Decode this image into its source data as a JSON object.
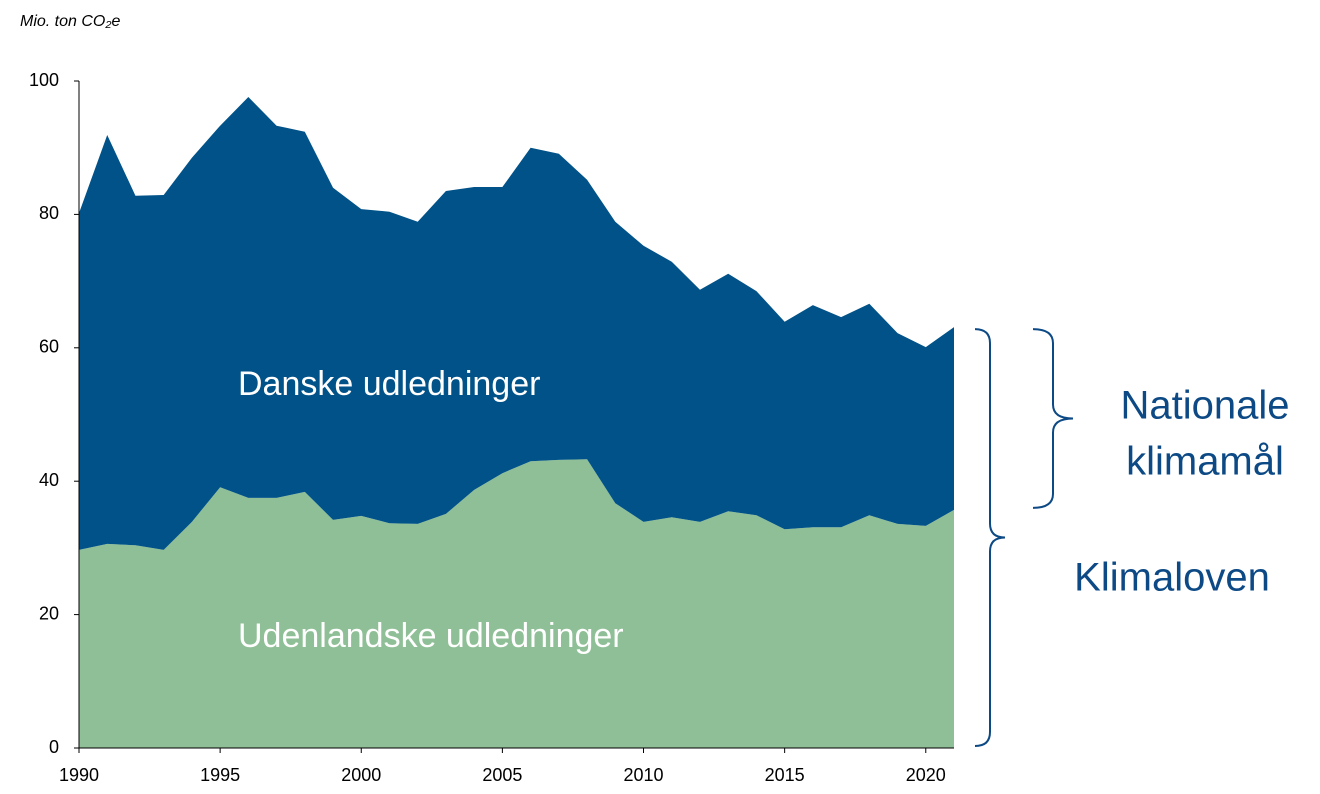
{
  "chart_data": {
    "type": "stacked_area",
    "y_axis_label": "Mio. ton CO₂e",
    "x": [
      1990,
      1991,
      1992,
      1993,
      1994,
      1995,
      1996,
      1997,
      1998,
      1999,
      2000,
      2001,
      2002,
      2003,
      2004,
      2005,
      2006,
      2007,
      2008,
      2009,
      2010,
      2011,
      2012,
      2013,
      2014,
      2015,
      2016,
      2017,
      2018,
      2019,
      2020,
      2021
    ],
    "series": [
      {
        "name": "Udenlandske udledninger",
        "color": "#8fbf96",
        "values": [
          29.7,
          30.6,
          30.4,
          29.7,
          33.9,
          39.1,
          37.5,
          37.5,
          38.4,
          34.2,
          34.8,
          33.7,
          33.6,
          35.1,
          38.7,
          41.2,
          43.0,
          43.2,
          43.3,
          36.7,
          33.9,
          34.6,
          33.9,
          35.5,
          34.9,
          32.8,
          33.1,
          33.1,
          34.9,
          33.6,
          33.3,
          35.7
        ]
      },
      {
        "name": "Danske udledninger",
        "color": "#005288",
        "values": [
          50.5,
          61.3,
          52.4,
          53.2,
          54.6,
          54.2,
          60.1,
          55.8,
          54.0,
          49.8,
          46.0,
          46.7,
          45.3,
          48.4,
          45.4,
          42.9,
          47.0,
          45.9,
          41.9,
          42.2,
          41.4,
          38.3,
          34.8,
          35.6,
          33.6,
          31.1,
          33.3,
          31.5,
          31.7,
          28.6,
          26.8,
          27.4
        ]
      }
    ],
    "xlim": [
      1990,
      2021
    ],
    "xticks": [
      1990,
      1995,
      2000,
      2005,
      2010,
      2015,
      2020
    ],
    "ylim": [
      0,
      100
    ],
    "yticks": [
      0,
      20,
      40,
      60,
      80,
      100
    ],
    "annotations": [
      {
        "lines": [
          "Nationale",
          "klimamål"
        ],
        "color": "#0d4a85"
      },
      {
        "lines": [
          "Klimaloven"
        ],
        "color": "#0d4a85"
      }
    ]
  }
}
